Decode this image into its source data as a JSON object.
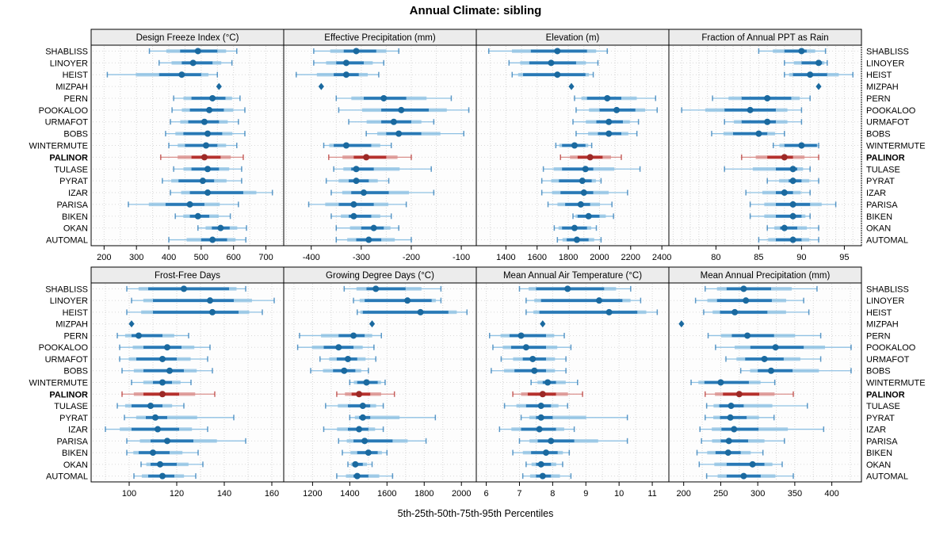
{
  "title": "Annual Climate: sibling",
  "caption": "5th-25th-50th-75th-95th Percentiles",
  "highlight_site": "PALINOR",
  "point_only_site": "MIZPAH",
  "sites": [
    "SHABLISS",
    "LINOYER",
    "HEIST",
    "MIZPAH",
    "PERN",
    "POOKALOO",
    "URMAFOT",
    "BOBS",
    "WINTERMUTE",
    "PALINOR",
    "TULASE",
    "PYRAT",
    "IZAR",
    "PARISA",
    "BIKEN",
    "OKAN",
    "AUTOMAL"
  ],
  "colors": {
    "blue_main": "#2878b5",
    "blue_dot": "#1a699f",
    "blue_light": "#8fc1e3",
    "red_main": "#b5312d",
    "red_dot": "#9c2926",
    "red_light": "#d98f8c",
    "strip_bg": "#ececec",
    "panel_bg": "#fdfdfd",
    "border": "#000000",
    "grid": "#d6d6d6",
    "row_line": "#d9d9d9",
    "text": "#000000"
  },
  "chart_data": [
    {
      "type": "percentile-dotplot",
      "title": "Design Freeze Index (°C)",
      "xlim": [
        160,
        755
      ],
      "ticks": [
        200,
        300,
        400,
        500,
        600,
        700
      ],
      "grid_step": 50,
      "percentiles": [
        5,
        25,
        50,
        75,
        95
      ],
      "values": [
        [
          340,
          435,
          490,
          550,
          610
        ],
        [
          370,
          440,
          475,
          535,
          595
        ],
        [
          210,
          370,
          440,
          500,
          550
        ],
        [
          555
        ],
        [
          415,
          470,
          535,
          575,
          620
        ],
        [
          410,
          465,
          525,
          570,
          635
        ],
        [
          405,
          460,
          510,
          555,
          615
        ],
        [
          390,
          445,
          520,
          565,
          635
        ],
        [
          400,
          450,
          515,
          550,
          610
        ],
        [
          375,
          470,
          510,
          560,
          630
        ],
        [
          415,
          470,
          520,
          555,
          625
        ],
        [
          380,
          430,
          505,
          540,
          625
        ],
        [
          405,
          465,
          520,
          630,
          720
        ],
        [
          275,
          390,
          465,
          510,
          615
        ],
        [
          420,
          465,
          490,
          525,
          590
        ],
        [
          490,
          533,
          560,
          588,
          640
        ],
        [
          400,
          500,
          535,
          580,
          638
        ]
      ]
    },
    {
      "type": "percentile-dotplot",
      "title": "Effective Precipitation (mm)",
      "xlim": [
        -455,
        -70
      ],
      "ticks": [
        -400,
        -300,
        -200,
        -100
      ],
      "grid_step": 50,
      "percentiles": [
        5,
        25,
        50,
        75,
        95
      ],
      "values": [
        [
          -395,
          -335,
          -310,
          -270,
          -225
        ],
        [
          -395,
          -350,
          -330,
          -295,
          -255
        ],
        [
          -430,
          -355,
          -330,
          -305,
          -265
        ],
        [
          -380
        ],
        [
          -350,
          -295,
          -255,
          -210,
          -120
        ],
        [
          -345,
          -260,
          -220,
          -165,
          -85
        ],
        [
          -325,
          -260,
          -235,
          -200,
          -155
        ],
        [
          -290,
          -250,
          -225,
          -180,
          -95
        ],
        [
          -375,
          -355,
          -330,
          -280,
          -240
        ],
        [
          -365,
          -315,
          -290,
          -250,
          -200
        ],
        [
          -355,
          -320,
          -310,
          -275,
          -160
        ],
        [
          -370,
          -325,
          -310,
          -285,
          -245
        ],
        [
          -360,
          -320,
          -295,
          -245,
          -155
        ],
        [
          -405,
          -345,
          -315,
          -275,
          -210
        ],
        [
          -360,
          -325,
          -315,
          -280,
          -240
        ],
        [
          -350,
          -300,
          -275,
          -255,
          -225
        ],
        [
          -350,
          -310,
          -285,
          -260,
          -200
        ]
      ]
    },
    {
      "type": "percentile-dotplot",
      "title": "Elevation (m)",
      "xlim": [
        1210,
        2445
      ],
      "ticks": [
        1400,
        1600,
        1800,
        2000,
        2200,
        2400
      ],
      "grid_step": 100,
      "percentiles": [
        5,
        25,
        50,
        75,
        95
      ],
      "values": [
        [
          1290,
          1560,
          1730,
          1920,
          2050
        ],
        [
          1420,
          1550,
          1690,
          1850,
          1990
        ],
        [
          1440,
          1510,
          1730,
          1910,
          1960
        ],
        [
          1820
        ],
        [
          1840,
          1920,
          2050,
          2140,
          2360
        ],
        [
          1850,
          2000,
          2110,
          2230,
          2370
        ],
        [
          1830,
          1980,
          2060,
          2150,
          2250
        ],
        [
          1850,
          1990,
          2060,
          2140,
          2240
        ],
        [
          1720,
          1760,
          1840,
          1910,
          1950
        ],
        [
          1750,
          1860,
          1940,
          2020,
          2140
        ],
        [
          1640,
          1760,
          1910,
          1960,
          2260
        ],
        [
          1630,
          1740,
          1890,
          1950,
          2010
        ],
        [
          1630,
          1750,
          1900,
          1960,
          2180
        ],
        [
          1670,
          1780,
          1880,
          1940,
          2080
        ],
        [
          1830,
          1860,
          1930,
          2000,
          2090
        ],
        [
          1710,
          1760,
          1840,
          1920,
          1980
        ],
        [
          1730,
          1790,
          1855,
          1930,
          2010
        ]
      ]
    },
    {
      "type": "percentile-dotplot",
      "title": "Fraction of Annual PPT as Rain",
      "xlim": [
        74.5,
        97
      ],
      "ticks": [
        80,
        85,
        90,
        95
      ],
      "grid_step": 1,
      "percentiles": [
        5,
        25,
        50,
        75,
        95
      ],
      "values": [
        [
          85,
          88,
          90,
          90.6,
          92.8
        ],
        [
          88,
          90,
          92,
          92.4,
          93
        ],
        [
          88,
          89,
          91,
          93,
          96
        ],
        [
          92
        ],
        [
          79.6,
          83,
          86,
          88.8,
          91
        ],
        [
          76,
          81,
          84,
          87,
          90
        ],
        [
          81,
          83,
          86,
          87,
          90
        ],
        [
          79.5,
          82,
          85,
          86,
          88
        ],
        [
          86.7,
          88,
          90,
          91.8,
          92
        ],
        [
          83,
          86,
          88,
          89,
          92
        ],
        [
          81,
          87,
          89,
          89.5,
          91
        ],
        [
          86,
          88.5,
          89,
          90,
          92
        ],
        [
          83.5,
          87,
          88,
          89,
          91
        ],
        [
          84,
          87,
          89,
          91,
          94
        ],
        [
          84,
          87,
          89,
          90,
          91
        ],
        [
          86,
          87.5,
          88,
          89.5,
          92
        ],
        [
          85,
          87,
          89,
          90,
          92
        ]
      ]
    },
    {
      "type": "percentile-dotplot",
      "title": "Frost-Free Days",
      "xlim": [
        84,
        165
      ],
      "ticks": [
        100,
        120,
        140,
        160
      ],
      "grid_step": 10,
      "percentiles": [
        5,
        25,
        50,
        75,
        95
      ],
      "values": [
        [
          99,
          108,
          123,
          142,
          149
        ],
        [
          101,
          110,
          134,
          144,
          161
        ],
        [
          99,
          110,
          135,
          146,
          156
        ],
        [
          101
        ],
        [
          95,
          101,
          104,
          114,
          125
        ],
        [
          96,
          106,
          116,
          122,
          134
        ],
        [
          96,
          103,
          114,
          120,
          133
        ],
        [
          97,
          106,
          117,
          123,
          135
        ],
        [
          101,
          110,
          114,
          118,
          126
        ],
        [
          97,
          106,
          114,
          121,
          136
        ],
        [
          95,
          101,
          109,
          114,
          123
        ],
        [
          98,
          107,
          111,
          116,
          144
        ],
        [
          90,
          101,
          112,
          121,
          133
        ],
        [
          99,
          109,
          116,
          127,
          149
        ],
        [
          99,
          104,
          110,
          117,
          129
        ],
        [
          105,
          109,
          113,
          120,
          131
        ],
        [
          102,
          108,
          114,
          119,
          128
        ]
      ]
    },
    {
      "type": "percentile-dotplot",
      "title": "Growing Degree Days (°C)",
      "xlim": [
        1045,
        2080
      ],
      "ticks": [
        1200,
        1400,
        1600,
        1800,
        2000
      ],
      "grid_step": 100,
      "percentiles": [
        5,
        25,
        50,
        75,
        95
      ],
      "values": [
        [
          1370,
          1490,
          1540,
          1700,
          1890
        ],
        [
          1420,
          1480,
          1710,
          1840,
          1890
        ],
        [
          1440,
          1470,
          1780,
          1930,
          2030
        ],
        [
          1520
        ],
        [
          1130,
          1340,
          1420,
          1480,
          1570
        ],
        [
          1120,
          1260,
          1340,
          1420,
          1530
        ],
        [
          1240,
          1330,
          1390,
          1440,
          1540
        ],
        [
          1190,
          1310,
          1370,
          1430,
          1500
        ],
        [
          1400,
          1440,
          1490,
          1550,
          1590
        ],
        [
          1330,
          1410,
          1450,
          1510,
          1640
        ],
        [
          1270,
          1390,
          1470,
          1510,
          1580
        ],
        [
          1400,
          1450,
          1470,
          1510,
          1860
        ],
        [
          1260,
          1390,
          1450,
          1500,
          1580
        ],
        [
          1340,
          1420,
          1480,
          1630,
          1810
        ],
        [
          1360,
          1440,
          1500,
          1550,
          1600
        ],
        [
          1390,
          1420,
          1430,
          1470,
          1520
        ],
        [
          1330,
          1420,
          1440,
          1500,
          1630
        ]
      ]
    },
    {
      "type": "percentile-dotplot",
      "title": "Mean Annual Air Temperature (°C)",
      "xlim": [
        5.7,
        11.5
      ],
      "ticks": [
        6,
        7,
        8,
        9,
        10,
        11
      ],
      "grid_step": 0.5,
      "percentiles": [
        5,
        25,
        50,
        75,
        95
      ],
      "values": [
        [
          7.0,
          7.5,
          8.45,
          9.55,
          10.35
        ],
        [
          7.2,
          7.65,
          9.4,
          10.1,
          10.65
        ],
        [
          7.2,
          7.6,
          9.7,
          10.55,
          11.15
        ],
        [
          7.7
        ],
        [
          6.1,
          6.7,
          7.05,
          7.8,
          8.35
        ],
        [
          6.2,
          6.75,
          7.2,
          7.8,
          8.55
        ],
        [
          6.45,
          7.1,
          7.4,
          7.8,
          8.4
        ],
        [
          6.15,
          6.85,
          7.45,
          7.8,
          8.4
        ],
        [
          7.35,
          7.7,
          7.85,
          8.1,
          8.75
        ],
        [
          6.8,
          7.25,
          7.7,
          8.1,
          8.9
        ],
        [
          6.55,
          7.2,
          7.65,
          7.95,
          8.45
        ],
        [
          7.05,
          7.5,
          7.65,
          8.0,
          10.25
        ],
        [
          6.4,
          7.05,
          7.6,
          8.1,
          8.65
        ],
        [
          7.0,
          7.55,
          7.95,
          8.65,
          10.25
        ],
        [
          6.8,
          7.35,
          7.8,
          8.15,
          8.5
        ],
        [
          7.2,
          7.5,
          7.65,
          7.95,
          8.3
        ],
        [
          7.1,
          7.5,
          7.7,
          7.95,
          8.55
        ]
      ]
    },
    {
      "type": "percentile-dotplot",
      "title": "Mean Annual Precipitation (mm)",
      "xlim": [
        180,
        440
      ],
      "ticks": [
        200,
        250,
        300,
        350,
        400
      ],
      "grid_step": 25,
      "percentiles": [
        5,
        25,
        50,
        75,
        95
      ],
      "values": [
        [
          229,
          258,
          281,
          318,
          380
        ],
        [
          216,
          245,
          284,
          319,
          362
        ],
        [
          227,
          249,
          269,
          313,
          369
        ],
        [
          197
        ],
        [
          233,
          265,
          286,
          322,
          385
        ],
        [
          243,
          290,
          324,
          362,
          426
        ],
        [
          257,
          283,
          309,
          335,
          385
        ],
        [
          277,
          300,
          318,
          347,
          426
        ],
        [
          210,
          228,
          250,
          288,
          323
        ],
        [
          229,
          253,
          275,
          302,
          348
        ],
        [
          231,
          248,
          264,
          281,
          367
        ],
        [
          229,
          249,
          263,
          285,
          322
        ],
        [
          222,
          251,
          268,
          301,
          389
        ],
        [
          224,
          250,
          261,
          287,
          336
        ],
        [
          218,
          243,
          260,
          277,
          307
        ],
        [
          221,
          258,
          293,
          309,
          333
        ],
        [
          231,
          258,
          281,
          304,
          348
        ]
      ]
    }
  ]
}
